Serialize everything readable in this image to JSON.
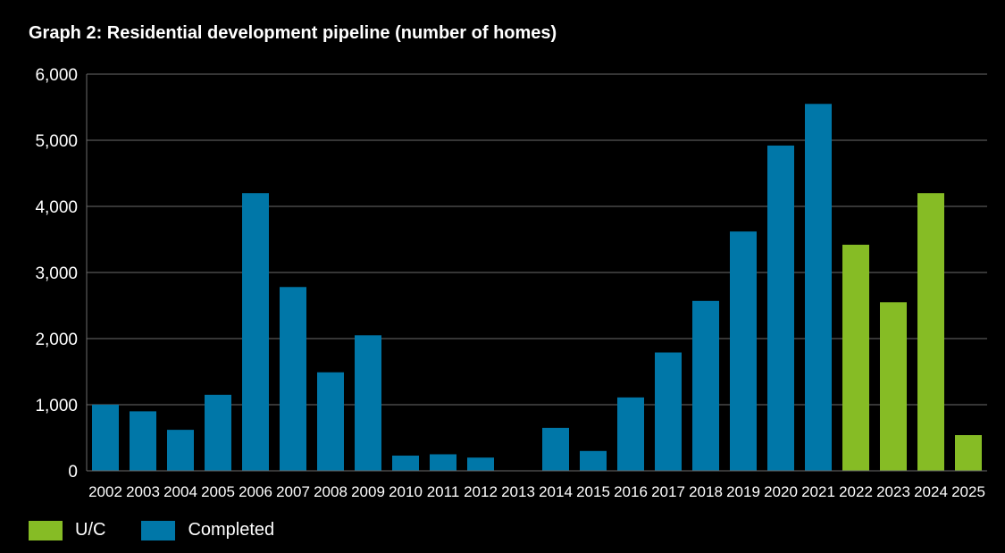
{
  "title": "Graph 2: Residential development pipeline (number of homes)",
  "colors": {
    "background": "#000000",
    "completed": "#0077A8",
    "uc": "#86BC25",
    "grid": "#6b6b6b",
    "text": "#ffffff"
  },
  "legend": [
    {
      "label": "U/C",
      "color": "#86BC25"
    },
    {
      "label": "Completed",
      "color": "#0077A8"
    }
  ],
  "chart_data": {
    "type": "bar",
    "title": "Graph 2: Residential development pipeline (number of homes)",
    "xlabel": "",
    "ylabel": "",
    "ylim": [
      0,
      6000
    ],
    "yticks": [
      0,
      1000,
      2000,
      3000,
      4000,
      5000,
      6000
    ],
    "ytick_labels": [
      "0",
      "1,000",
      "2,000",
      "3,000",
      "4,000",
      "5,000",
      "6,000"
    ],
    "grid": true,
    "legend_position": "bottom-left",
    "categories": [
      "2002",
      "2003",
      "2004",
      "2005",
      "2006",
      "2007",
      "2008",
      "2009",
      "2010",
      "2011",
      "2012",
      "2013",
      "2014",
      "2015",
      "2016",
      "2017",
      "2018",
      "2019",
      "2020",
      "2021",
      "2022",
      "2023",
      "2024",
      "2025"
    ],
    "series": [
      {
        "name": "Completed",
        "color": "#0077A8",
        "values": [
          1000,
          900,
          620,
          1150,
          4200,
          2780,
          1490,
          2050,
          230,
          250,
          200,
          0,
          650,
          300,
          1110,
          1790,
          2570,
          3620,
          4920,
          5550,
          null,
          null,
          null,
          null
        ]
      },
      {
        "name": "U/C",
        "color": "#86BC25",
        "values": [
          null,
          null,
          null,
          null,
          null,
          null,
          null,
          null,
          null,
          null,
          null,
          null,
          null,
          null,
          null,
          null,
          null,
          null,
          null,
          null,
          3420,
          2550,
          4200,
          540
        ]
      }
    ]
  }
}
